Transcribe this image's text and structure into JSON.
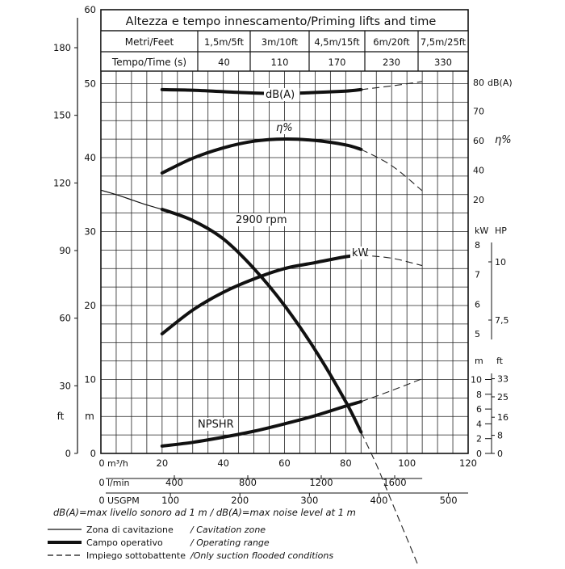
{
  "chart_data": {
    "type": "line",
    "title": "Altezza e tempo innescamento/Priming lifts and time",
    "priming_table": {
      "row1_label": "Metri/Feet",
      "row2_label": "Tempo/Time (s)",
      "lifts": [
        "1,5m/5ft",
        "3m/10ft",
        "4,5m/15ft",
        "6m/20ft",
        "7,5m/25ft"
      ],
      "times": [
        "40",
        "110",
        "170",
        "230",
        "330"
      ]
    },
    "x_axes": {
      "m3h": {
        "label": "m³/h",
        "range": [
          0,
          120
        ],
        "ticks": [
          "0",
          "20",
          "40",
          "60",
          "80",
          "100",
          "120"
        ]
      },
      "lmin": {
        "label": "l/min",
        "ticks": [
          "0",
          "400",
          "800",
          "1200",
          "1600"
        ],
        "values": [
          0,
          400,
          800,
          1200,
          1600
        ]
      },
      "usgpm": {
        "label": "USGPM",
        "ticks": [
          "0",
          "100",
          "200",
          "300",
          "400",
          "500"
        ],
        "values": [
          0,
          100,
          200,
          300,
          400,
          500
        ]
      }
    },
    "left_axes": {
      "m": {
        "label": "m",
        "range": [
          0,
          60
        ],
        "ticks": [
          "0",
          "10",
          "20",
          "30",
          "40",
          "50",
          "60"
        ]
      },
      "ft": {
        "label": "ft",
        "ticks": [
          "0",
          "30",
          "60",
          "90",
          "120",
          "150",
          "180"
        ],
        "values": [
          0,
          30,
          60,
          90,
          120,
          150,
          180
        ]
      }
    },
    "right_axes": {
      "db": {
        "label": "dB(A)",
        "ticks": [
          "70",
          "80"
        ],
        "values": [
          70,
          80
        ]
      },
      "eta": {
        "label": "η%",
        "ticks": [
          "20",
          "40",
          "60"
        ],
        "values": [
          20,
          40,
          60
        ]
      },
      "kw": {
        "label": "kW",
        "ticks": [
          "5",
          "6",
          "7",
          "8"
        ],
        "values": [
          5,
          6,
          7,
          8
        ]
      },
      "hp": {
        "label": "HP",
        "ticks": [
          "7,5",
          "10"
        ],
        "values": [
          7.5,
          10
        ]
      },
      "npsh_m": {
        "label": "m",
        "ticks": [
          "0",
          "2",
          "4",
          "6",
          "8",
          "10"
        ],
        "values": [
          0,
          2,
          4,
          6,
          8,
          10
        ]
      },
      "npsh_ft": {
        "label": "ft",
        "ticks": [
          "0",
          "8",
          "16",
          "25",
          "33"
        ],
        "values": [
          0,
          8,
          16,
          25,
          33
        ]
      }
    },
    "series": [
      {
        "name": "2900 rpm",
        "unit": "m",
        "cavitation": [
          [
            0,
            35.6
          ],
          [
            5,
            35.0
          ],
          [
            10,
            34.3
          ],
          [
            15,
            33.6
          ],
          [
            20,
            33.0
          ]
        ],
        "operating": [
          [
            20,
            33.0
          ],
          [
            30,
            31.5
          ],
          [
            40,
            29.0
          ],
          [
            50,
            25.0
          ],
          [
            60,
            20.0
          ],
          [
            70,
            14.0
          ],
          [
            80,
            7.0
          ],
          [
            85,
            2.9
          ]
        ],
        "flooded_only": [
          [
            85,
            2.9
          ],
          [
            90,
            -1.5
          ],
          [
            95,
            -6.5
          ],
          [
            100,
            -11.5
          ],
          [
            105,
            -16.5
          ]
        ]
      },
      {
        "name": "dB(A)",
        "unit": "dB(A)",
        "operating": [
          [
            20,
            77.5
          ],
          [
            30,
            77.3
          ],
          [
            40,
            76.8
          ],
          [
            50,
            76.3
          ],
          [
            60,
            76.1
          ],
          [
            70,
            76.5
          ],
          [
            80,
            77.0
          ],
          [
            85,
            77.5
          ]
        ],
        "flooded_only": [
          [
            85,
            77.5
          ],
          [
            95,
            78.8
          ],
          [
            105,
            80.3
          ]
        ]
      },
      {
        "name": "η%",
        "unit": "%",
        "operating": [
          [
            20,
            38
          ],
          [
            30,
            48
          ],
          [
            40,
            55
          ],
          [
            50,
            59.5
          ],
          [
            60,
            61
          ],
          [
            70,
            60
          ],
          [
            80,
            57
          ],
          [
            85,
            54
          ]
        ],
        "flooded_only": [
          [
            85,
            54
          ],
          [
            95,
            43
          ],
          [
            105,
            26
          ]
        ]
      },
      {
        "name": "kW",
        "unit": "kW",
        "operating": [
          [
            20,
            5.0
          ],
          [
            30,
            5.8
          ],
          [
            40,
            6.4
          ],
          [
            50,
            6.85
          ],
          [
            60,
            7.2
          ],
          [
            70,
            7.4
          ],
          [
            80,
            7.6
          ],
          [
            85,
            7.65
          ]
        ],
        "flooded_only": [
          [
            85,
            7.65
          ],
          [
            95,
            7.55
          ],
          [
            105,
            7.3
          ]
        ]
      },
      {
        "name": "NPSHR",
        "unit": "m",
        "operating": [
          [
            20,
            1.0
          ],
          [
            30,
            1.5
          ],
          [
            40,
            2.2
          ],
          [
            50,
            3.0
          ],
          [
            60,
            4.0
          ],
          [
            70,
            5.1
          ],
          [
            80,
            6.4
          ],
          [
            85,
            7.0
          ]
        ],
        "flooded_only": [
          [
            85,
            7.0
          ],
          [
            95,
            8.5
          ],
          [
            105,
            10.1
          ]
        ]
      }
    ],
    "grid": true,
    "footnote": "dB(A)=max livello sonoro ad 1 m / dB(A)=max noise level at 1 m",
    "legend": [
      {
        "style": "thin",
        "it": "Zona di cavitazione",
        "en": "/ Cavitation zone"
      },
      {
        "style": "thick",
        "it": "Campo operativo",
        "en": "/ Operating range"
      },
      {
        "style": "dashed",
        "it": "Impiego sottobattente",
        "en": "/Only suction flooded conditions"
      }
    ]
  }
}
